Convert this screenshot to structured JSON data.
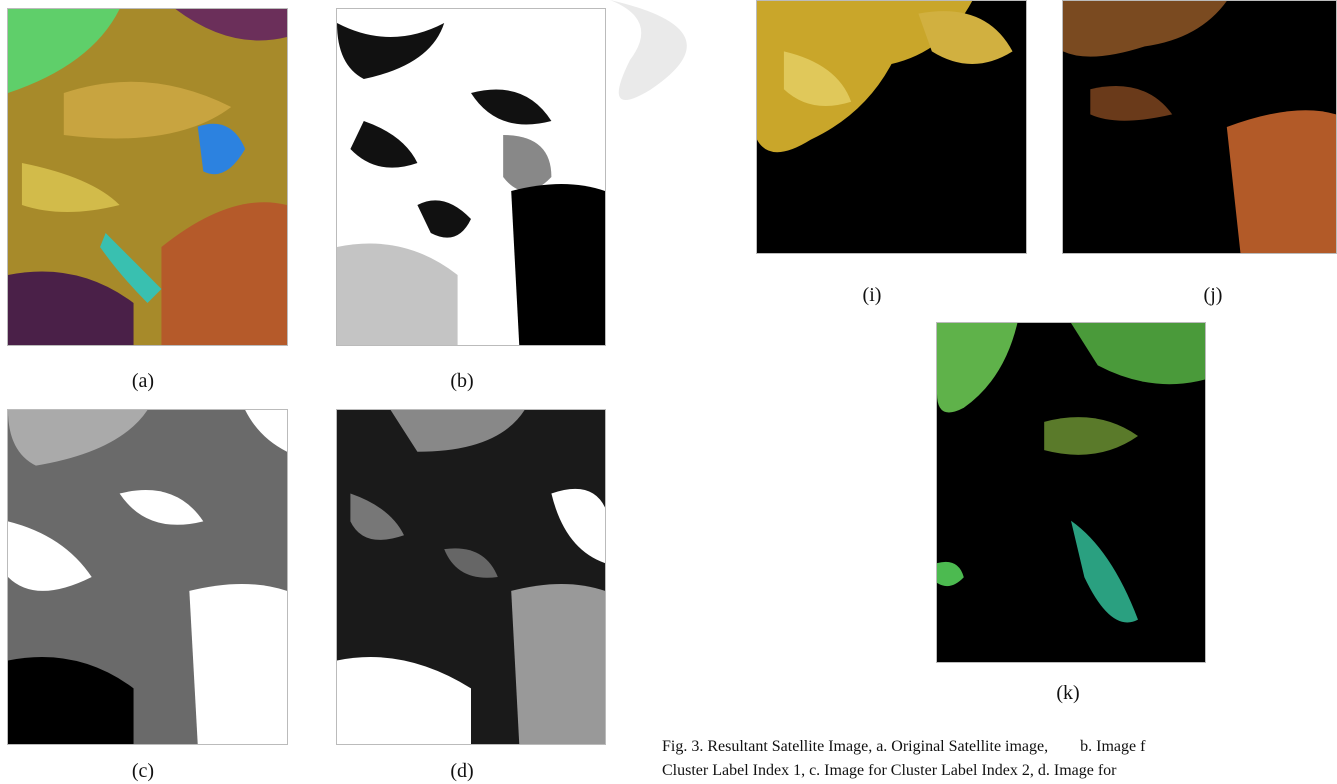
{
  "figure": {
    "panels": [
      {
        "label": "(a)"
      },
      {
        "label": "(b)"
      },
      {
        "label": "(c)"
      },
      {
        "label": "(d)"
      },
      {
        "label": "(i)"
      },
      {
        "label": "(j)"
      },
      {
        "label": "(k)"
      }
    ],
    "caption": [
      "Fig. 3. Resultant Satellite Image, a. Original Satellite image,        b. Image f",
      "Cluster Label Index 1, c. Image for Cluster Label Index 2, d. Image for"
    ]
  }
}
